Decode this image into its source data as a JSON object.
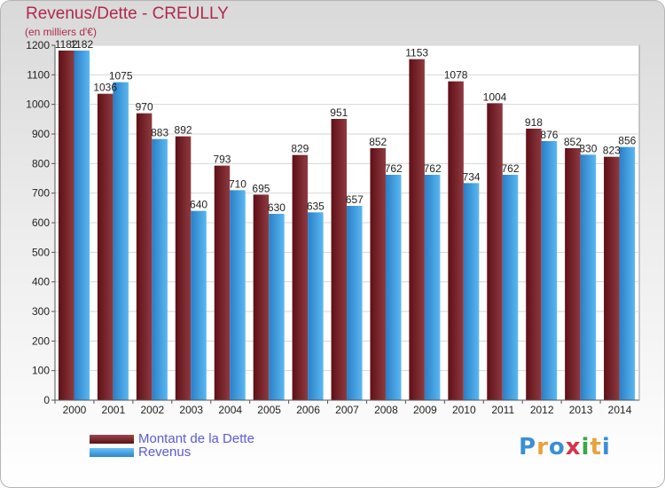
{
  "chart_data": {
    "type": "bar",
    "title": "Revenus/Dette - CREULLY",
    "subtitle": "(en milliers d'€)",
    "categories": [
      "2000",
      "2001",
      "2002",
      "2003",
      "2004",
      "2005",
      "2006",
      "2007",
      "2008",
      "2009",
      "2010",
      "2011",
      "2012",
      "2013",
      "2014"
    ],
    "series": [
      {
        "name": "Montant de la Dette",
        "values": [
          1182,
          1036,
          970,
          892,
          793,
          695,
          829,
          951,
          852,
          1153,
          1078,
          1004,
          918,
          852,
          823
        ],
        "color": "#7a2a2f"
      },
      {
        "name": "Revenus",
        "values": [
          1182,
          1075,
          883,
          640,
          710,
          630,
          635,
          657,
          762,
          762,
          734,
          762,
          876,
          830,
          856
        ],
        "color": "#3d9ee6"
      }
    ],
    "ylim": [
      0,
      1200
    ],
    "yticks": [
      0,
      100,
      200,
      300,
      400,
      500,
      600,
      700,
      800,
      900,
      1000,
      1100,
      1200
    ],
    "grid": true,
    "legend": "bottom-left"
  },
  "logo": {
    "text": "Proxiti"
  }
}
